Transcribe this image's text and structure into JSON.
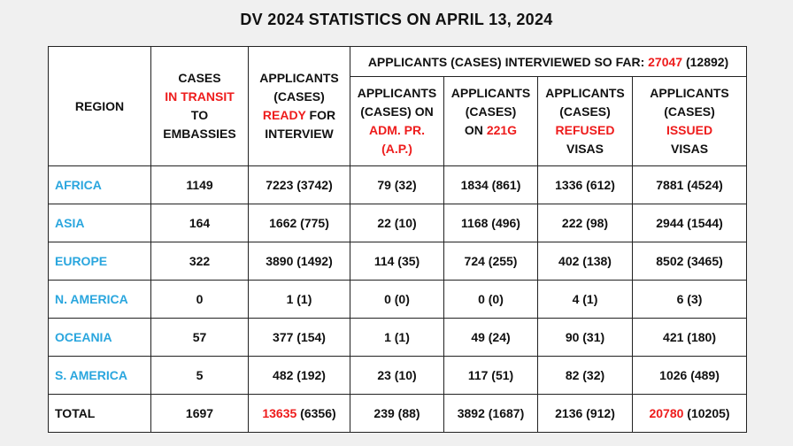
{
  "title": "DV 2024 STATISTICS ON APRIL 13, 2024",
  "headers": {
    "region": "REGION",
    "in_transit": {
      "l1": "CASES",
      "l2": "IN TRANSIT",
      "l3": "TO",
      "l4": "EMBASSIES"
    },
    "ready": {
      "l1": "APPLICANTS",
      "l2": "(CASES)",
      "l3_red": "READY",
      "l3_rest": " FOR",
      "l4": "INTERVIEW"
    },
    "interviewed": {
      "prefix": "APPLICANTS (CASES) INTERVIEWED SO FAR: ",
      "value_red": "27047",
      "suffix": " (12892)"
    },
    "adm": {
      "l1": "APPLICANTS",
      "l2": "(CASES) ON",
      "l3": "ADM. PR.",
      "l4": "(A.P.)"
    },
    "g221": {
      "l1": "APPLICANTS",
      "l2": "(CASES)",
      "l3_pre": "ON ",
      "l3_red": "221G"
    },
    "refused": {
      "l1": "APPLICANTS",
      "l2": "(CASES)",
      "l3": "REFUSED",
      "l4": "VISAS"
    },
    "issued": {
      "l1": "APPLICANTS",
      "l2": "(CASES)",
      "l3": "ISSUED",
      "l4": "VISAS"
    }
  },
  "rows": [
    {
      "region": "AFRICA",
      "transit": "1149",
      "ready": "7223 (3742)",
      "adm": "79 (32)",
      "g221": "1834 (861)",
      "refused": "1336 (612)",
      "issued": "7881 (4524)"
    },
    {
      "region": "ASIA",
      "transit": "164",
      "ready": "1662 (775)",
      "adm": "22 (10)",
      "g221": "1168 (496)",
      "refused": "222 (98)",
      "issued": "2944 (1544)"
    },
    {
      "region": "EUROPE",
      "transit": "322",
      "ready": "3890 (1492)",
      "adm": "114 (35)",
      "g221": "724 (255)",
      "refused": "402 (138)",
      "issued": "8502 (3465)"
    },
    {
      "region": "N. AMERICA",
      "transit": "0",
      "ready": "1 (1)",
      "adm": "0 (0)",
      "g221": "0 (0)",
      "refused": "4 (1)",
      "issued": "6 (3)"
    },
    {
      "region": "OCEANIA",
      "transit": "57",
      "ready": "377 (154)",
      "adm": "1 (1)",
      "g221": "49 (24)",
      "refused": "90 (31)",
      "issued": "421 (180)"
    },
    {
      "region": "S. AMERICA",
      "transit": "5",
      "ready": "482 (192)",
      "adm": "23 (10)",
      "g221": "117 (51)",
      "refused": "82 (32)",
      "issued": "1026 (489)"
    }
  ],
  "total": {
    "label": "TOTAL",
    "transit": "1697",
    "ready_red": "13635",
    "ready_rest": " (6356)",
    "adm": "239 (88)",
    "g221": "3892 (1687)",
    "refused": "2136 (912)",
    "issued_red": "20780",
    "issued_rest": " (10205)"
  },
  "colors": {
    "region": "#2aa6de",
    "highlight": "#ee1c1c",
    "text": "#111111",
    "background": "#f0f0f0"
  }
}
